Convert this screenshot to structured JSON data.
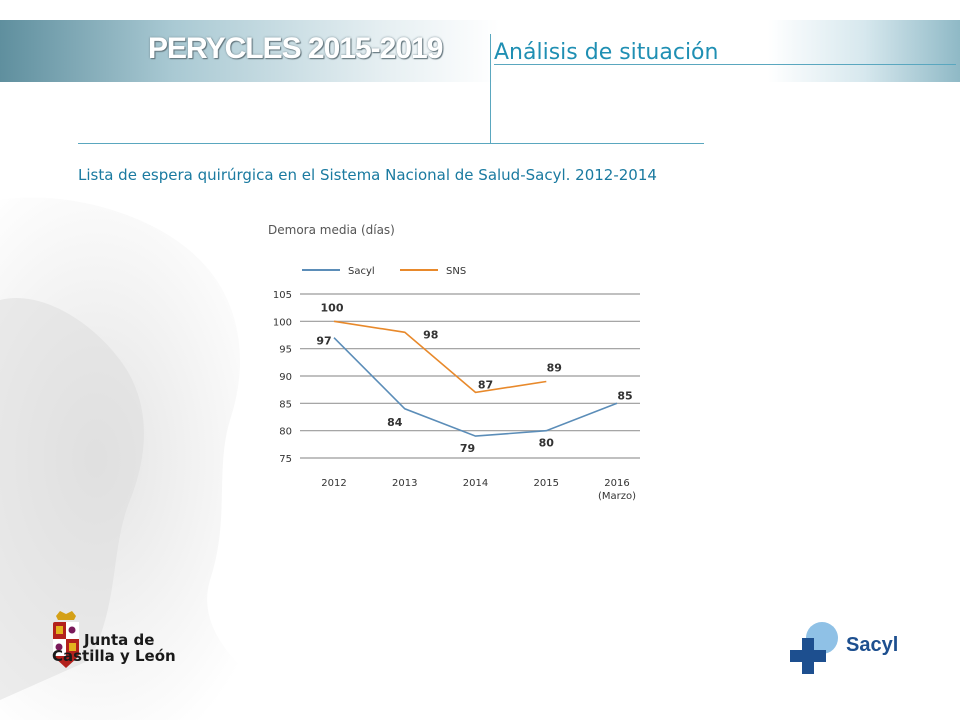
{
  "header": {
    "brand": "PERYCLES 2015-2019",
    "section_title": "Análisis de situación"
  },
  "subtitle": "Lista de espera quirúrgica en el Sistema Nacional de Salud-Sacyl. 2012-2014",
  "logos": {
    "jcyl_line1": "Junta de",
    "jcyl_line2": "Castilla y León",
    "sacyl": "Sacyl"
  },
  "colors": {
    "accent": "#1f8fb3",
    "sacyl": "#5b8db8",
    "sns": "#e8892b",
    "grid": "#9a9a9a"
  },
  "chart_data": {
    "type": "line",
    "title": "Demora media (días)",
    "categories": [
      "2012",
      "2013",
      "2014",
      "2015",
      "2016\n(Marzo)"
    ],
    "ylim": [
      75,
      105
    ],
    "yticks": [
      75,
      80,
      85,
      90,
      95,
      100,
      105
    ],
    "grid": true,
    "legend": "top-left",
    "series": [
      {
        "name": "Sacyl",
        "color": "#5b8db8",
        "values": [
          97,
          84,
          79,
          80,
          85
        ]
      },
      {
        "name": "SNS",
        "color": "#e8892b",
        "values": [
          100,
          98,
          87,
          89,
          null
        ]
      }
    ]
  }
}
